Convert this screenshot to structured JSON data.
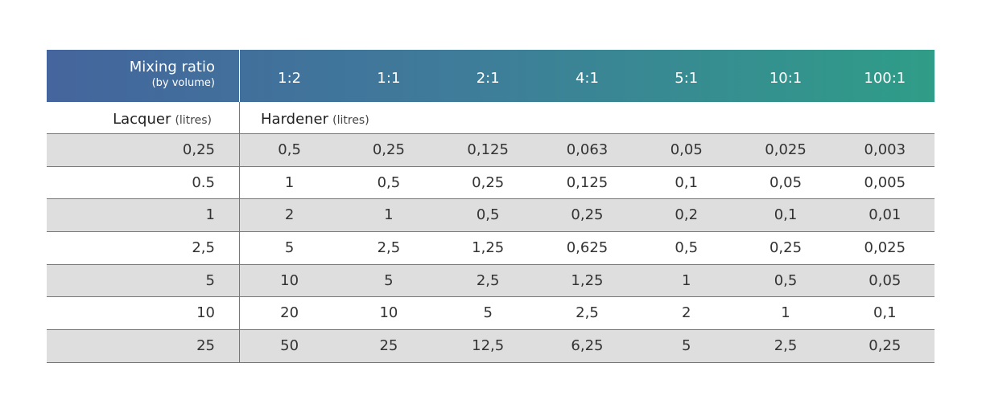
{
  "header": {
    "title": "Mixing ratio",
    "subtitle": "(by volume)",
    "ratios": [
      "1:2",
      "1:1",
      "2:1",
      "4:1",
      "5:1",
      "10:1",
      "100:1"
    ]
  },
  "labels": {
    "lacquer": "Lacquer",
    "lacquer_unit": "(litres)",
    "hardener": "Hardener",
    "hardener_unit": "(litres)"
  },
  "rows": [
    {
      "lacquer": "0,25",
      "values": [
        "0,5",
        "0,25",
        "0,125",
        "0,063",
        "0,05",
        "0,025",
        "0,003"
      ]
    },
    {
      "lacquer": "0.5",
      "values": [
        "1",
        "0,5",
        "0,25",
        "0,125",
        "0,1",
        "0,05",
        "0,005"
      ]
    },
    {
      "lacquer": "1",
      "values": [
        "2",
        "1",
        "0,5",
        "0,25",
        "0,2",
        "0,1",
        "0,01"
      ]
    },
    {
      "lacquer": "2,5",
      "values": [
        "5",
        "2,5",
        "1,25",
        "0,625",
        "0,5",
        "0,25",
        "0,025"
      ]
    },
    {
      "lacquer": "5",
      "values": [
        "10",
        "5",
        "2,5",
        "1,25",
        "1",
        "0,5",
        "0,05"
      ]
    },
    {
      "lacquer": "10",
      "values": [
        "20",
        "10",
        "5",
        "2,5",
        "2",
        "1",
        "0,1"
      ]
    },
    {
      "lacquer": "25",
      "values": [
        "50",
        "25",
        "12,5",
        "6,25",
        "5",
        "2,5",
        "0,25"
      ]
    }
  ]
}
